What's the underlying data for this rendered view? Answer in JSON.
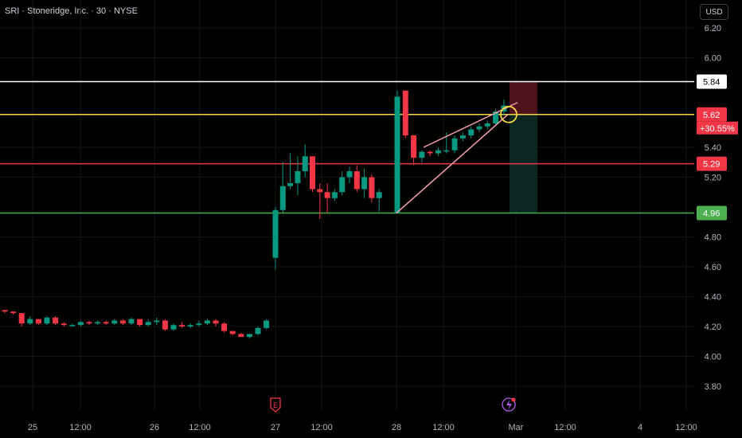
{
  "header": {
    "symbol_title": "SRI · Stoneridge, Inc. · 30 · NYSE",
    "currency": "USD"
  },
  "chart_data": {
    "type": "candlestick",
    "ylim": [
      3.7,
      6.28
    ],
    "y_ticks": [
      "6.20",
      "6.00",
      "5.40",
      "5.20",
      "4.80",
      "4.60",
      "4.40",
      "4.20",
      "4.00",
      "3.80"
    ],
    "x_ticks": [
      "25",
      "12:00",
      "26",
      "12:00",
      "27",
      "12:00",
      "28",
      "12:00",
      "Mar",
      "12:00",
      "4",
      "12:00"
    ],
    "price_lines": [
      {
        "name": "white",
        "value": 5.84,
        "label": "5.84",
        "color": "#ffffff",
        "text_color": "#000000"
      },
      {
        "name": "yellow",
        "value": 5.62,
        "label": "5.62",
        "color": "#f5d742",
        "text_color": "#ffffff",
        "badge_color": "#f23645"
      },
      {
        "name": "red",
        "value": 5.29,
        "label": "5.29",
        "color": "#f23645",
        "text_color": "#ffffff"
      },
      {
        "name": "green",
        "value": 4.96,
        "label": "4.96",
        "color": "#4caf50",
        "text_color": "#ffffff"
      }
    ],
    "change_label": "+30.55%",
    "candles": [
      [
        4.31,
        4.31,
        4.29,
        4.3
      ],
      [
        4.3,
        4.3,
        4.28,
        4.29
      ],
      [
        4.29,
        4.29,
        4.2,
        4.22
      ],
      [
        4.22,
        4.27,
        4.21,
        4.25
      ],
      [
        4.25,
        4.25,
        4.21,
        4.22
      ],
      [
        4.22,
        4.27,
        4.21,
        4.26
      ],
      [
        4.26,
        4.27,
        4.21,
        4.22
      ],
      [
        4.22,
        4.23,
        4.2,
        4.21
      ],
      [
        4.21,
        4.22,
        4.2,
        4.21
      ],
      [
        4.21,
        4.24,
        4.2,
        4.23
      ],
      [
        4.23,
        4.24,
        4.21,
        4.22
      ],
      [
        4.22,
        4.24,
        4.21,
        4.23
      ],
      [
        4.23,
        4.24,
        4.21,
        4.22
      ],
      [
        4.22,
        4.25,
        4.21,
        4.24
      ],
      [
        4.24,
        4.25,
        4.21,
        4.22
      ],
      [
        4.22,
        4.26,
        4.21,
        4.25
      ],
      [
        4.25,
        4.25,
        4.2,
        4.21
      ],
      [
        4.21,
        4.25,
        4.2,
        4.23
      ],
      [
        4.23,
        4.26,
        4.21,
        4.24
      ],
      [
        4.24,
        4.25,
        4.17,
        4.18
      ],
      [
        4.18,
        4.22,
        4.17,
        4.21
      ],
      [
        4.21,
        4.23,
        4.19,
        4.2
      ],
      [
        4.2,
        4.22,
        4.19,
        4.21
      ],
      [
        4.21,
        4.24,
        4.2,
        4.22
      ],
      [
        4.22,
        4.25,
        4.21,
        4.24
      ],
      [
        4.24,
        4.25,
        4.2,
        4.22
      ],
      [
        4.22,
        4.23,
        4.16,
        4.17
      ],
      [
        4.17,
        4.17,
        4.14,
        4.15
      ],
      [
        4.15,
        4.16,
        4.13,
        4.13
      ],
      [
        4.13,
        4.15,
        4.12,
        4.15
      ],
      [
        4.15,
        4.2,
        4.14,
        4.19
      ],
      [
        4.19,
        4.25,
        4.18,
        4.24
      ],
      [
        4.66,
        5.0,
        4.58,
        4.98
      ],
      [
        4.98,
        5.3,
        4.96,
        5.14
      ],
      [
        5.14,
        5.36,
        5.12,
        5.16
      ],
      [
        5.16,
        5.34,
        5.08,
        5.24
      ],
      [
        5.24,
        5.42,
        5.2,
        5.34
      ],
      [
        5.34,
        5.34,
        5.1,
        5.12
      ],
      [
        5.12,
        5.16,
        4.92,
        5.1
      ],
      [
        5.1,
        5.16,
        4.96,
        5.06
      ],
      [
        5.06,
        5.12,
        5.04,
        5.1
      ],
      [
        5.1,
        5.24,
        5.08,
        5.2
      ],
      [
        5.2,
        5.27,
        5.16,
        5.24
      ],
      [
        5.24,
        5.28,
        5.1,
        5.12
      ],
      [
        5.12,
        5.26,
        5.06,
        5.2
      ],
      [
        5.2,
        5.22,
        5.03,
        5.06
      ],
      [
        5.06,
        5.12,
        4.97,
        5.1
      ],
      [
        4.96,
        5.78,
        4.96,
        5.74
      ],
      [
        5.78,
        5.78,
        5.46,
        5.48
      ],
      [
        5.48,
        5.48,
        5.28,
        5.33
      ],
      [
        5.33,
        5.38,
        5.3,
        5.37
      ],
      [
        5.37,
        5.38,
        5.34,
        5.36
      ],
      [
        5.36,
        5.4,
        5.34,
        5.38
      ],
      [
        5.38,
        5.5,
        5.36,
        5.38
      ],
      [
        5.38,
        5.48,
        5.36,
        5.46
      ],
      [
        5.46,
        5.5,
        5.44,
        5.48
      ],
      [
        5.48,
        5.54,
        5.46,
        5.52
      ],
      [
        5.52,
        5.56,
        5.5,
        5.54
      ],
      [
        5.54,
        5.58,
        5.52,
        5.56
      ],
      [
        5.56,
        5.66,
        5.55,
        5.64
      ],
      [
        5.64,
        5.72,
        5.62,
        5.68
      ]
    ]
  }
}
